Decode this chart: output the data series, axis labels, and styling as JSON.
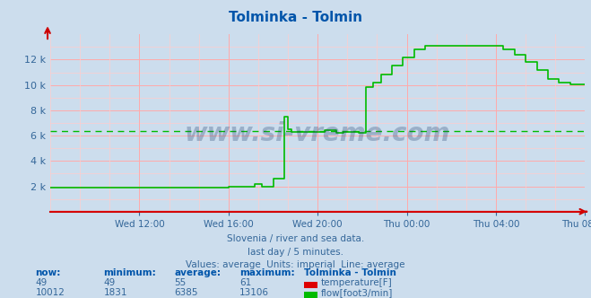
{
  "title": "Tolminka - Tolmin",
  "bg_color": "#ccdded",
  "plot_bg_color": "#ccdded",
  "grid_color_major": "#ffaaaa",
  "grid_color_minor": "#ffcccc",
  "temp_color": "#dd0000",
  "flow_color": "#00bb00",
  "avg_line_color": "#00bb00",
  "x_axis_color": "#cc0000",
  "tick_color": "#336699",
  "subtitle1": "Slovenia / river and sea data.",
  "subtitle2": "last day / 5 minutes.",
  "subtitle3": "Values: average  Units: imperial  Line: average",
  "xtick_labels": [
    "Wed 12:00",
    "Wed 16:00",
    "Wed 20:00",
    "Thu 00:00",
    "Thu 04:00",
    "Thu 08:00"
  ],
  "ymax": 14000,
  "ymin": 0,
  "temp_now": 49,
  "temp_min": 49,
  "temp_avg": 55,
  "temp_max": 61,
  "flow_now": 10012,
  "flow_min": 1831,
  "flow_avg": 6385,
  "flow_max": 13106,
  "watermark": "www.si-vreme.com"
}
